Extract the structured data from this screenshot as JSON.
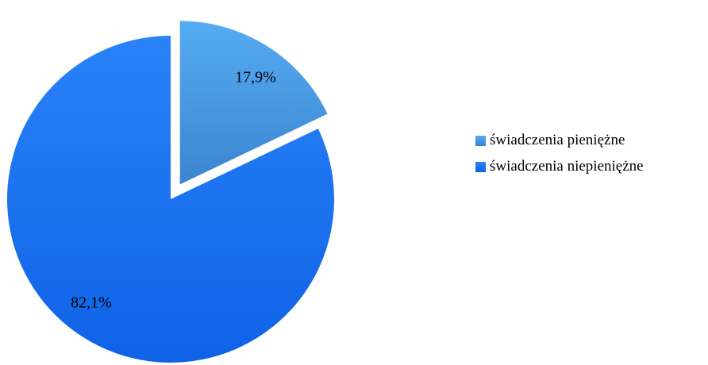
{
  "chart_data": {
    "type": "pie",
    "exploded": "first slice",
    "legend_position": "right",
    "slices": [
      {
        "label": "świadczenia pieniężne",
        "value": 17.9,
        "display": "17,9%",
        "color": "#4a9fe4"
      },
      {
        "label": "świadczenia niepieniężne",
        "value": 82.1,
        "display": "82,1%",
        "color": "#1a73f0"
      }
    ]
  }
}
